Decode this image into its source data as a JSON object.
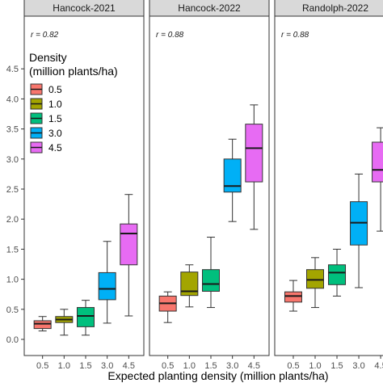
{
  "chart_data": {
    "type": "box",
    "xlabel": "Expected planting density (million plants/ha)",
    "ylabel": "",
    "ylim": [
      0,
      4.7
    ],
    "yticks": [
      "0.0",
      "0.5",
      "1.0",
      "1.5",
      "2.0",
      "2.5",
      "3.0",
      "3.5",
      "4.0",
      "4.5"
    ],
    "categories": [
      "0.5",
      "1.0",
      "1.5",
      "3.0",
      "4.5"
    ],
    "legend": {
      "title": "Density\n(million plants/ha)",
      "title_lines": [
        "Density",
        "(million plants/ha)"
      ],
      "entries": [
        "0.5",
        "1.0",
        "1.5",
        "3.0",
        "4.5"
      ],
      "placement": "inside-left"
    },
    "colors": {
      "0.5": "#F8766D",
      "1.0": "#A3A500",
      "1.5": "#00BF7D",
      "3.0": "#00B0F6",
      "4.5": "#E76BF3",
      "strip": "#D9D9D9",
      "panel_border": "#333333"
    },
    "grid": false,
    "panels": [
      {
        "name": "Hancock-2021",
        "annotation": "r = 0.82",
        "boxes": [
          {
            "density": "0.5",
            "min": 0.14,
            "q1": 0.18,
            "median": 0.26,
            "q3": 0.31,
            "max": 0.38
          },
          {
            "density": "1.0",
            "min": 0.07,
            "q1": 0.28,
            "median": 0.33,
            "q3": 0.38,
            "max": 0.5
          },
          {
            "density": "1.5",
            "min": 0.07,
            "q1": 0.21,
            "median": 0.39,
            "q3": 0.53,
            "max": 0.65
          },
          {
            "density": "3.0",
            "min": 0.27,
            "q1": 0.66,
            "median": 0.84,
            "q3": 1.11,
            "max": 1.63
          },
          {
            "density": "4.5",
            "min": 0.39,
            "q1": 1.24,
            "median": 1.76,
            "q3": 1.92,
            "max": 2.41
          }
        ]
      },
      {
        "name": "Hancock-2022",
        "annotation": "r = 0.88",
        "boxes": [
          {
            "density": "0.5",
            "min": 0.28,
            "q1": 0.47,
            "median": 0.6,
            "q3": 0.72,
            "max": 0.79
          },
          {
            "density": "1.0",
            "min": 0.54,
            "q1": 0.73,
            "median": 0.8,
            "q3": 1.12,
            "max": 1.24
          },
          {
            "density": "1.5",
            "min": 0.53,
            "q1": 0.8,
            "median": 0.92,
            "q3": 1.16,
            "max": 1.7
          },
          {
            "density": "3.0",
            "min": 1.96,
            "q1": 2.45,
            "median": 2.55,
            "q3": 3.0,
            "max": 3.33
          },
          {
            "density": "4.5",
            "min": 1.83,
            "q1": 2.62,
            "median": 3.18,
            "q3": 3.58,
            "max": 3.9
          }
        ]
      },
      {
        "name": "Randolph-2022",
        "annotation": "r = 0.88",
        "boxes": [
          {
            "density": "0.5",
            "min": 0.47,
            "q1": 0.62,
            "median": 0.72,
            "q3": 0.79,
            "max": 0.98
          },
          {
            "density": "1.0",
            "min": 0.53,
            "q1": 0.85,
            "median": 0.99,
            "q3": 1.16,
            "max": 1.36
          },
          {
            "density": "1.5",
            "min": 0.72,
            "q1": 0.91,
            "median": 1.11,
            "q3": 1.24,
            "max": 1.5
          },
          {
            "density": "3.0",
            "min": 0.86,
            "q1": 1.57,
            "median": 1.94,
            "q3": 2.29,
            "max": 2.75
          },
          {
            "density": "4.5",
            "min": 1.8,
            "q1": 2.62,
            "median": 2.82,
            "q3": 3.28,
            "max": 3.52
          }
        ]
      }
    ]
  }
}
